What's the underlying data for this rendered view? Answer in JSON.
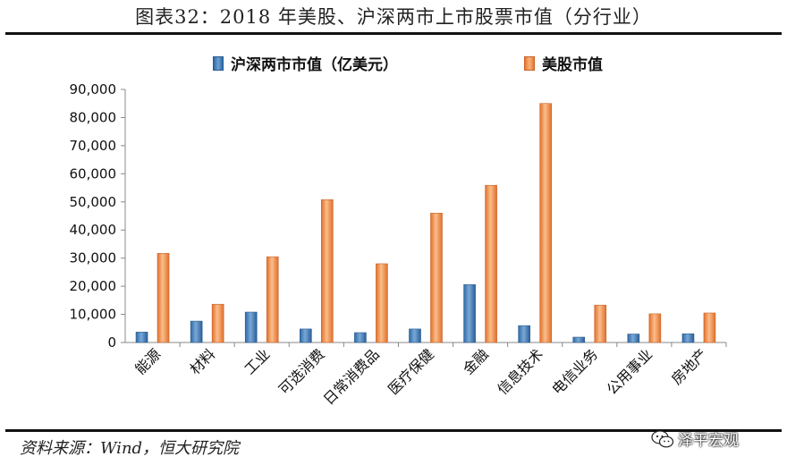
{
  "header": {
    "title": "图表32：2018 年美股、沪深两市上市股票市值（分行业）"
  },
  "footer": {
    "source": "资料来源：Wind，恒大研究院",
    "watermark": "泽平宏观"
  },
  "colors": {
    "cn_series": "#4f86c0",
    "us_series": "#f0954f",
    "axis": "#888888"
  },
  "chart_data": {
    "type": "bar",
    "categories": [
      "能源",
      "材料",
      "工业",
      "可选消费",
      "日常消费品",
      "医疗保健",
      "金融",
      "信息技术",
      "电信业务",
      "公用事业",
      "房地产"
    ],
    "series": [
      {
        "name": "沪深两市市值（亿美元）",
        "values": [
          3700,
          7600,
          10800,
          4800,
          3500,
          4800,
          20600,
          6000,
          1900,
          3000,
          3100
        ]
      },
      {
        "name": "美股市值",
        "values": [
          31700,
          13600,
          30500,
          50800,
          28000,
          46000,
          55900,
          85000,
          13300,
          10200,
          10500
        ]
      }
    ],
    "yticks": [
      "0",
      "10,000",
      "20,000",
      "30,000",
      "40,000",
      "50,000",
      "60,000",
      "70,000",
      "80,000",
      "90,000"
    ],
    "ylim": [
      0,
      90000
    ],
    "grid": false,
    "legend_position": "top"
  }
}
